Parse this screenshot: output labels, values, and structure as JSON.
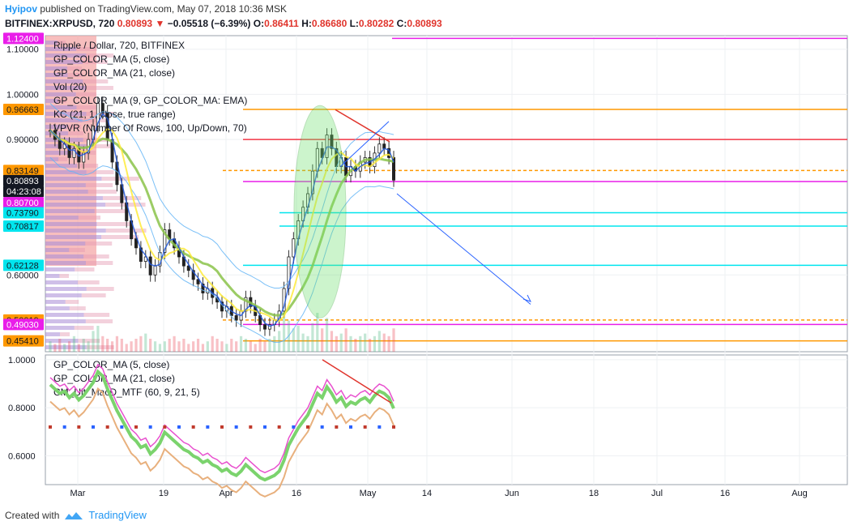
{
  "header": {
    "user": "Hyipov",
    "published": "published on TradingView.com, May 07, 2018 10:36 MSK",
    "symbol": "BITFINEX:XRPUSD, 720",
    "price": "0.80893",
    "change_icon": "triangle-down-icon",
    "change": "−0.05518 (−6.39%)",
    "o_label": "O:",
    "o_value": "0.86411",
    "h_label": "H:",
    "h_value": "0.86680",
    "l_label": "L:",
    "l_value": "0.80282",
    "c_label": "C:",
    "c_value": "0.80893"
  },
  "legend_main": [
    "Ripple / Dollar, 720, BITFINEX",
    "GP_COLOR_MA (5, close)",
    "GP_COLOR_MA (21, close)",
    "Vol (20)",
    "GP_COLOR_MA (9, GP_COLOR_MA: EMA)",
    "KC (21, 1, close, true range)",
    "VPVR (Number Of Rows, 100, Up/Down, 70)"
  ],
  "legend_osc": [
    "GP_COLOR_MA (5, close)",
    "GP_COLOR_MA (21, close)",
    "CM_Ult_MacD_MTF (60, 9, 21, 5)"
  ],
  "footer": {
    "created": "Created with",
    "brand": "TradingView",
    "logo_icon": "tradingview-logo-icon"
  },
  "colors": {
    "up": "#53b987",
    "down": "#eb4d5c",
    "accent": "#2196f3",
    "magenta": "#e91ee9",
    "orange": "#ff9800",
    "cyan": "#00e5ee",
    "red": "#f23645"
  },
  "chart_data": [
    {
      "type": "candlestick",
      "title": "Ripple / Dollar, 720, BITFINEX",
      "y_ticks": [
        "1.10000",
        "1.00000",
        "0.90000",
        "0.60000"
      ],
      "ylim": [
        0.43,
        1.13
      ],
      "x_ticks": [
        "Mar",
        "19",
        "Apr",
        "16",
        "May",
        "14",
        "Jun",
        "18",
        "Jul",
        "16",
        "Aug"
      ],
      "price_labels": [
        {
          "value": "1.12400",
          "color": "#e91ee9"
        },
        {
          "value": "0.96663",
          "color": "#ff9800"
        },
        {
          "value": "0.83149",
          "color": "#ff9800"
        },
        {
          "value": "0.80893",
          "color": "#131722"
        },
        {
          "value": "04:23:08",
          "color": "#131722"
        },
        {
          "value": "0.80700",
          "color": "#e91ee9"
        },
        {
          "value": "0.73790",
          "color": "#00e5ee"
        },
        {
          "value": "0.70817",
          "color": "#00e5ee"
        },
        {
          "value": "0.62128",
          "color": "#00e5ee"
        },
        {
          "value": "0.50019",
          "color": "#ff9800"
        },
        {
          "value": "0.49030",
          "color": "#e91ee9"
        },
        {
          "value": "0.45410",
          "color": "#ff9800"
        }
      ],
      "levels": [
        {
          "value": 1.124,
          "color": "#e91ee9",
          "style": "solid"
        },
        {
          "value": 0.96663,
          "color": "#ff9800",
          "style": "solid"
        },
        {
          "value": 0.9,
          "color": "#f23645",
          "style": "solid"
        },
        {
          "value": 0.83149,
          "color": "#ff9800",
          "style": "dashed"
        },
        {
          "value": 0.807,
          "color": "#e91ee9",
          "style": "solid"
        },
        {
          "value": 0.7379,
          "color": "#00e5ee",
          "style": "solid"
        },
        {
          "value": 0.70817,
          "color": "#00e5ee",
          "style": "solid"
        },
        {
          "value": 0.62128,
          "color": "#00e5ee",
          "style": "solid"
        },
        {
          "value": 0.50019,
          "color": "#ff9800",
          "style": "dashed"
        },
        {
          "value": 0.4903,
          "color": "#e91ee9",
          "style": "solid"
        },
        {
          "value": 0.4541,
          "color": "#ff9800",
          "style": "solid"
        }
      ],
      "close_path": [
        0.92,
        0.9,
        0.88,
        0.89,
        0.86,
        0.88,
        0.85,
        0.87,
        0.9,
        0.93,
        0.98,
        0.96,
        0.9,
        0.85,
        0.8,
        0.76,
        0.72,
        0.68,
        0.66,
        0.63,
        0.64,
        0.6,
        0.62,
        0.65,
        0.7,
        0.68,
        0.66,
        0.64,
        0.62,
        0.61,
        0.59,
        0.58,
        0.56,
        0.57,
        0.55,
        0.54,
        0.52,
        0.53,
        0.51,
        0.5,
        0.52,
        0.55,
        0.53,
        0.51,
        0.49,
        0.48,
        0.49,
        0.5,
        0.52,
        0.57,
        0.64,
        0.68,
        0.72,
        0.75,
        0.78,
        0.83,
        0.88,
        0.86,
        0.91,
        0.88,
        0.84,
        0.86,
        0.82,
        0.84,
        0.83,
        0.85,
        0.86,
        0.84,
        0.87,
        0.89,
        0.88,
        0.86,
        0.81
      ],
      "volume": [
        4,
        3,
        5,
        3,
        4,
        6,
        3,
        5,
        4,
        8,
        10,
        6,
        5,
        4,
        6,
        5,
        3,
        4,
        5,
        6,
        7,
        5,
        4,
        3,
        4,
        5,
        6,
        4,
        5,
        3,
        4,
        5,
        3,
        4,
        6,
        5,
        4,
        3,
        5,
        4,
        6,
        5,
        4,
        3,
        5,
        4,
        5,
        6,
        8,
        14,
        12,
        9,
        10,
        7,
        6,
        11,
        15,
        9,
        13,
        8,
        6,
        7,
        9,
        6,
        5,
        6,
        7,
        5,
        6,
        8,
        7,
        6,
        9
      ]
    },
    {
      "type": "line",
      "title": "CM_Ult_MacD_MTF (60, 9, 21, 5)",
      "y_ticks": [
        "1.0000",
        "0.8000",
        "0.6000"
      ],
      "ylim": [
        0.48,
        1.02
      ]
    }
  ]
}
